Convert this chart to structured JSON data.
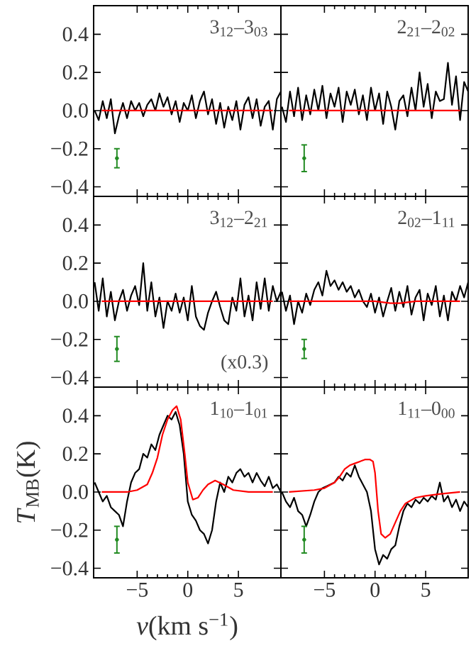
{
  "chart_data": [
    {
      "type": "line",
      "title": "3$_{12}$–3$_{03}$",
      "xlim": [
        -9.3,
        9.2
      ],
      "ylim": [
        -0.45,
        0.55
      ],
      "tick_labels": "y",
      "xticks": [
        {
          "value": -5,
          "label": null
        },
        {
          "value": 0,
          "label": null
        },
        {
          "value": 5,
          "label": null
        }
      ],
      "yticks": [
        {
          "value": -0.4,
          "label": "−0.4"
        },
        {
          "value": -0.2,
          "label": "−0.2"
        },
        {
          "value": 0,
          "label": "0.0"
        },
        {
          "value": 0.2,
          "label": "0.2"
        },
        {
          "value": 0.4,
          "label": "0.4"
        }
      ],
      "x": [
        -9.2,
        -8.8,
        -8.4,
        -8.0,
        -7.6,
        -7.2,
        -6.8,
        -6.4,
        -6.0,
        -5.6,
        -5.2,
        -4.8,
        -4.4,
        -4.0,
        -3.6,
        -3.2,
        -2.8,
        -2.4,
        -2.0,
        -1.6,
        -1.2,
        -0.8,
        -0.4,
        0.0,
        0.4,
        0.8,
        1.2,
        1.6,
        2.0,
        2.4,
        2.8,
        3.2,
        3.6,
        4.0,
        4.4,
        4.8,
        5.2,
        5.6,
        6.0,
        6.4,
        6.8,
        7.2,
        7.6,
        8.0,
        8.4,
        8.8,
        9.2
      ],
      "series": [
        {
          "color": "#000000",
          "values": [
            0.0,
            -0.05,
            0.05,
            -0.04,
            0.06,
            -0.12,
            -0.03,
            0.04,
            -0.04,
            0.05,
            0.0,
            0.04,
            -0.03,
            0.03,
            0.06,
            0.0,
            0.09,
            0.02,
            0.07,
            -0.02,
            0.05,
            -0.06,
            0.04,
            0.0,
            0.08,
            -0.04,
            0.05,
            0.1,
            -0.02,
            0.06,
            -0.07,
            0.04,
            -0.09,
            0.02,
            -0.05,
            0.05,
            -0.1,
            0.03,
            0.07,
            -0.04,
            0.06,
            -0.08,
            0.02,
            0.05,
            -0.1,
            0.06,
            0.1
          ]
        },
        {
          "color": "#ff0000",
          "x": [
            -8.5,
            8.4
          ],
          "values": [
            0,
            0
          ]
        },
        {
          "type": "scatter",
          "marker": "circle",
          "color": "#228b22",
          "x": [
            -7.0
          ],
          "values": [
            -0.25
          ],
          "errors": [
            0.05
          ]
        }
      ]
    },
    {
      "type": "line",
      "title": "2$_{21}$–2$_{02}$",
      "xlim": [
        -9.3,
        9.2
      ],
      "ylim": [
        -0.45,
        0.55
      ],
      "tick_labels": false,
      "xticks": [
        {
          "value": -5,
          "label": null
        },
        {
          "value": 0,
          "label": null
        },
        {
          "value": 5,
          "label": null
        }
      ],
      "yticks": [
        {
          "value": -0.4,
          "label": null
        },
        {
          "value": -0.2,
          "label": null
        },
        {
          "value": 0,
          "label": null
        },
        {
          "value": 0.2,
          "label": null
        },
        {
          "value": 0.4,
          "label": null
        }
      ],
      "x": [
        -9.2,
        -8.8,
        -8.4,
        -8.0,
        -7.6,
        -7.2,
        -6.8,
        -6.4,
        -6.0,
        -5.6,
        -5.2,
        -4.8,
        -4.4,
        -4.0,
        -3.6,
        -3.2,
        -2.8,
        -2.4,
        -2.0,
        -1.6,
        -1.2,
        -0.8,
        -0.4,
        0.0,
        0.4,
        0.8,
        1.2,
        1.6,
        2.0,
        2.4,
        2.8,
        3.2,
        3.6,
        4.0,
        4.4,
        4.8,
        5.2,
        5.6,
        6.0,
        6.4,
        6.8,
        7.2,
        7.6,
        8.0,
        8.4,
        8.8,
        9.2
      ],
      "series": [
        {
          "color": "#000000",
          "values": [
            0.02,
            -0.06,
            0.1,
            -0.03,
            0.12,
            -0.05,
            0.08,
            -0.02,
            0.11,
            0.0,
            0.13,
            -0.04,
            0.09,
            0.02,
            0.12,
            -0.06,
            0.1,
            0.03,
            0.11,
            -0.02,
            0.08,
            -0.05,
            0.12,
            0.0,
            0.09,
            -0.07,
            0.1,
            0.02,
            -0.1,
            0.05,
            0.08,
            -0.03,
            0.12,
            0.0,
            0.2,
            0.02,
            0.14,
            -0.04,
            0.1,
            0.05,
            0.06,
            0.25,
            0.03,
            0.18,
            -0.05,
            0.15,
            0.1
          ]
        },
        {
          "color": "#ff0000",
          "x": [
            -8.5,
            8.4
          ],
          "values": [
            0,
            0
          ]
        },
        {
          "type": "scatter",
          "marker": "circle",
          "color": "#228b22",
          "x": [
            -7.0
          ],
          "values": [
            -0.25
          ],
          "errors": [
            0.07
          ]
        }
      ]
    },
    {
      "type": "line",
      "title": "3$_{12}$–2$_{21}$",
      "annotations": [
        "(x0.3)"
      ],
      "xlim": [
        -9.3,
        9.2
      ],
      "ylim": [
        -0.45,
        0.55
      ],
      "tick_labels": "y",
      "xticks": [
        {
          "value": -5,
          "label": null
        },
        {
          "value": 0,
          "label": null
        },
        {
          "value": 5,
          "label": null
        }
      ],
      "yticks": [
        {
          "value": -0.4,
          "label": "−0.4"
        },
        {
          "value": -0.2,
          "label": "−0.2"
        },
        {
          "value": 0,
          "label": "0.0"
        },
        {
          "value": 0.2,
          "label": "0.2"
        },
        {
          "value": 0.4,
          "label": "0.4"
        }
      ],
      "x": [
        -9.2,
        -8.8,
        -8.4,
        -8.0,
        -7.6,
        -7.2,
        -6.8,
        -6.4,
        -6.0,
        -5.6,
        -5.2,
        -4.8,
        -4.4,
        -4.0,
        -3.6,
        -3.2,
        -2.8,
        -2.4,
        -2.0,
        -1.6,
        -1.2,
        -0.8,
        -0.4,
        0.0,
        0.4,
        0.8,
        1.2,
        1.6,
        2.0,
        2.4,
        2.8,
        3.2,
        3.6,
        4.0,
        4.4,
        4.8,
        5.2,
        5.6,
        6.0,
        6.4,
        6.8,
        7.2,
        7.6,
        8.0,
        8.4,
        8.8,
        9.2
      ],
      "series": [
        {
          "color": "#000000",
          "values": [
            0.1,
            -0.05,
            0.12,
            -0.08,
            0.05,
            -0.1,
            0.0,
            0.06,
            -0.05,
            0.03,
            0.08,
            -0.02,
            0.2,
            -0.05,
            0.1,
            -0.08,
            0.02,
            -0.14,
            0.0,
            -0.05,
            0.04,
            -0.06,
            0.02,
            -0.1,
            0.08,
            -0.08,
            -0.13,
            -0.15,
            -0.06,
            0.0,
            0.05,
            -0.03,
            -0.1,
            -0.12,
            0.02,
            -0.05,
            0.12,
            -0.08,
            0.03,
            -0.1,
            0.1,
            -0.04,
            0.12,
            -0.05,
            0.08,
            0.0,
            0.05
          ]
        },
        {
          "color": "#ff0000",
          "x": [
            -8.5,
            8.4
          ],
          "values": [
            0,
            0
          ]
        },
        {
          "type": "scatter",
          "marker": "circle",
          "color": "#228b22",
          "x": [
            -7.0
          ],
          "values": [
            -0.25
          ],
          "errors": [
            0.065
          ]
        }
      ]
    },
    {
      "type": "line",
      "title": "2$_{02}$–1$_{11}$",
      "xlim": [
        -9.3,
        9.2
      ],
      "ylim": [
        -0.45,
        0.55
      ],
      "tick_labels": false,
      "xticks": [
        {
          "value": -5,
          "label": null
        },
        {
          "value": 0,
          "label": null
        },
        {
          "value": 5,
          "label": null
        }
      ],
      "yticks": [
        {
          "value": -0.4,
          "label": null
        },
        {
          "value": -0.2,
          "label": null
        },
        {
          "value": 0,
          "label": null
        },
        {
          "value": 0.2,
          "label": null
        },
        {
          "value": 0.4,
          "label": null
        }
      ],
      "x": [
        -9.2,
        -8.8,
        -8.4,
        -8.0,
        -7.6,
        -7.2,
        -6.8,
        -6.4,
        -6.0,
        -5.6,
        -5.2,
        -4.8,
        -4.4,
        -4.0,
        -3.6,
        -3.2,
        -2.8,
        -2.4,
        -2.0,
        -1.6,
        -1.2,
        -0.8,
        -0.4,
        0.0,
        0.4,
        0.8,
        1.2,
        1.6,
        2.0,
        2.4,
        2.8,
        3.2,
        3.6,
        4.0,
        4.4,
        4.8,
        5.2,
        5.6,
        6.0,
        6.4,
        6.8,
        7.2,
        7.6,
        8.0,
        8.4,
        8.8,
        9.2
      ],
      "series": [
        {
          "color": "#000000",
          "values": [
            0.05,
            -0.05,
            0.03,
            -0.12,
            0.0,
            -0.06,
            0.04,
            -0.02,
            0.06,
            0.1,
            0.03,
            0.16,
            0.08,
            0.11,
            0.06,
            0.1,
            0.05,
            0.08,
            0.02,
            0.06,
            0.0,
            -0.03,
            0.04,
            -0.06,
            0.02,
            -0.08,
            0.0,
            0.07,
            -0.05,
            0.05,
            -0.03,
            0.08,
            -0.07,
            0.02,
            0.06,
            -0.1,
            0.04,
            -0.02,
            0.08,
            -0.08,
            0.03,
            -0.1,
            0.05,
            0.0,
            0.08,
            0.02,
            0.1
          ]
        },
        {
          "color": "#ff0000",
          "x": [
            -8.5,
            0,
            1.5,
            2.5,
            4,
            8.4
          ],
          "values": [
            0,
            0,
            -0.01,
            -0.01,
            0,
            0
          ]
        },
        {
          "type": "scatter",
          "marker": "circle",
          "color": "#228b22",
          "x": [
            -7.0
          ],
          "values": [
            -0.25
          ],
          "errors": [
            0.05
          ]
        }
      ]
    },
    {
      "type": "line",
      "title": "1$_{10}$–1$_{01}$",
      "xlabel": "*v*(km s$^{−1}$)",
      "ylabel": "*T*$_{MB}$(K)",
      "xlim": [
        -9.3,
        9.2
      ],
      "ylim": [
        -0.45,
        0.55
      ],
      "xticks": [
        {
          "value": -5,
          "label": "−5"
        },
        {
          "value": 0,
          "label": "0"
        },
        {
          "value": 5,
          "label": "5"
        }
      ],
      "yticks": [
        {
          "value": -0.4,
          "label": "−0.4"
        },
        {
          "value": -0.2,
          "label": "−0.2"
        },
        {
          "value": 0,
          "label": "0.0"
        },
        {
          "value": 0.2,
          "label": "0.2"
        },
        {
          "value": 0.4,
          "label": "0.4"
        }
      ],
      "x": [
        -9.2,
        -8.8,
        -8.4,
        -8.0,
        -7.6,
        -7.2,
        -6.8,
        -6.4,
        -6.0,
        -5.6,
        -5.2,
        -4.8,
        -4.4,
        -4.0,
        -3.6,
        -3.2,
        -2.8,
        -2.4,
        -2.0,
        -1.6,
        -1.2,
        -0.8,
        -0.4,
        0.0,
        0.4,
        0.8,
        1.2,
        1.6,
        2.0,
        2.4,
        2.8,
        3.2,
        3.6,
        4.0,
        4.4,
        4.8,
        5.2,
        5.6,
        6.0,
        6.4,
        6.8,
        7.2,
        7.6,
        8.0,
        8.4,
        8.8,
        9.2
      ],
      "series": [
        {
          "color": "#000000",
          "values": [
            0.05,
            0.0,
            -0.05,
            -0.02,
            -0.08,
            -0.1,
            -0.12,
            -0.18,
            -0.05,
            0.05,
            0.1,
            0.12,
            0.2,
            0.18,
            0.25,
            0.22,
            0.3,
            0.35,
            0.4,
            0.38,
            0.42,
            0.35,
            0.2,
            -0.05,
            -0.12,
            -0.15,
            -0.2,
            -0.22,
            -0.27,
            -0.2,
            -0.05,
            0.05,
            0.0,
            0.08,
            0.05,
            0.1,
            0.12,
            0.08,
            0.1,
            0.05,
            0.1,
            0.06,
            0.03,
            0.08,
            0.02,
            0.04,
            0.0
          ]
        },
        {
          "color": "#ff0000",
          "x": [
            -8.5,
            -6,
            -5,
            -4,
            -3.5,
            -3,
            -2.5,
            -2,
            -1.5,
            -1.1,
            -0.7,
            -0.3,
            0,
            0.5,
            1,
            1.5,
            2,
            2.7,
            3.5,
            4.5,
            6,
            8.4
          ],
          "values": [
            0,
            0,
            0.01,
            0.04,
            0.1,
            0.18,
            0.3,
            0.38,
            0.43,
            0.45,
            0.38,
            0.2,
            0.05,
            -0.04,
            -0.03,
            0.01,
            0.04,
            0.06,
            0.04,
            0.01,
            0,
            0
          ]
        },
        {
          "type": "scatter",
          "marker": "circle",
          "color": "#228b22",
          "x": [
            -7.0
          ],
          "values": [
            -0.25
          ],
          "errors": [
            0.07
          ]
        }
      ]
    },
    {
      "type": "line",
      "title": "1$_{11}$–0$_{00}$",
      "xlim": [
        -9.3,
        9.2
      ],
      "ylim": [
        -0.45,
        0.55
      ],
      "tick_labels": "x",
      "xticks": [
        {
          "value": -5,
          "label": "−5"
        },
        {
          "value": 0,
          "label": "0"
        },
        {
          "value": 5,
          "label": "5"
        }
      ],
      "yticks": [
        {
          "value": -0.4,
          "label": null
        },
        {
          "value": -0.2,
          "label": null
        },
        {
          "value": 0,
          "label": null
        },
        {
          "value": 0.2,
          "label": null
        },
        {
          "value": 0.4,
          "label": null
        }
      ],
      "x": [
        -9.2,
        -8.8,
        -8.4,
        -8.0,
        -7.6,
        -7.2,
        -6.8,
        -6.4,
        -6.0,
        -5.6,
        -5.2,
        -4.8,
        -4.4,
        -4.0,
        -3.6,
        -3.2,
        -2.8,
        -2.4,
        -2.0,
        -1.6,
        -1.2,
        -0.8,
        -0.4,
        0.0,
        0.4,
        0.8,
        1.2,
        1.6,
        2.0,
        2.4,
        2.8,
        3.2,
        3.6,
        4.0,
        4.4,
        4.8,
        5.2,
        5.6,
        6.0,
        6.4,
        6.8,
        7.2,
        7.6,
        8.0,
        8.4,
        8.8,
        9.2
      ],
      "series": [
        {
          "color": "#000000",
          "values": [
            0.0,
            -0.05,
            -0.08,
            -0.03,
            -0.1,
            -0.12,
            -0.18,
            -0.12,
            -0.05,
            0.0,
            0.02,
            0.03,
            0.04,
            0.05,
            0.08,
            0.06,
            0.1,
            0.08,
            0.14,
            0.08,
            0.04,
            0.0,
            -0.1,
            -0.3,
            -0.38,
            -0.33,
            -0.35,
            -0.3,
            -0.28,
            -0.18,
            -0.1,
            -0.06,
            -0.08,
            -0.04,
            -0.06,
            -0.03,
            -0.05,
            -0.02,
            -0.04,
            0.05,
            -0.05,
            -0.02,
            -0.08,
            -0.04,
            -0.1,
            -0.05,
            -0.08
          ]
        },
        {
          "color": "#ff0000",
          "x": [
            -8.5,
            -6,
            -5,
            -4,
            -3.5,
            -3,
            -2.5,
            -2,
            -1.5,
            -1,
            -0.5,
            -0.2,
            0,
            0.3,
            0.6,
            1,
            1.5,
            2,
            2.5,
            3,
            4,
            5,
            6.5,
            8.4
          ],
          "values": [
            0,
            0.01,
            0.02,
            0.05,
            0.08,
            0.12,
            0.14,
            0.15,
            0.16,
            0.17,
            0.17,
            0.16,
            0.1,
            -0.1,
            -0.22,
            -0.24,
            -0.22,
            -0.16,
            -0.1,
            -0.06,
            -0.03,
            -0.02,
            -0.01,
            0
          ]
        },
        {
          "type": "scatter",
          "marker": "circle",
          "color": "#228b22",
          "x": [
            -7.0
          ],
          "values": [
            -0.25
          ],
          "errors": [
            0.07
          ]
        }
      ]
    }
  ]
}
